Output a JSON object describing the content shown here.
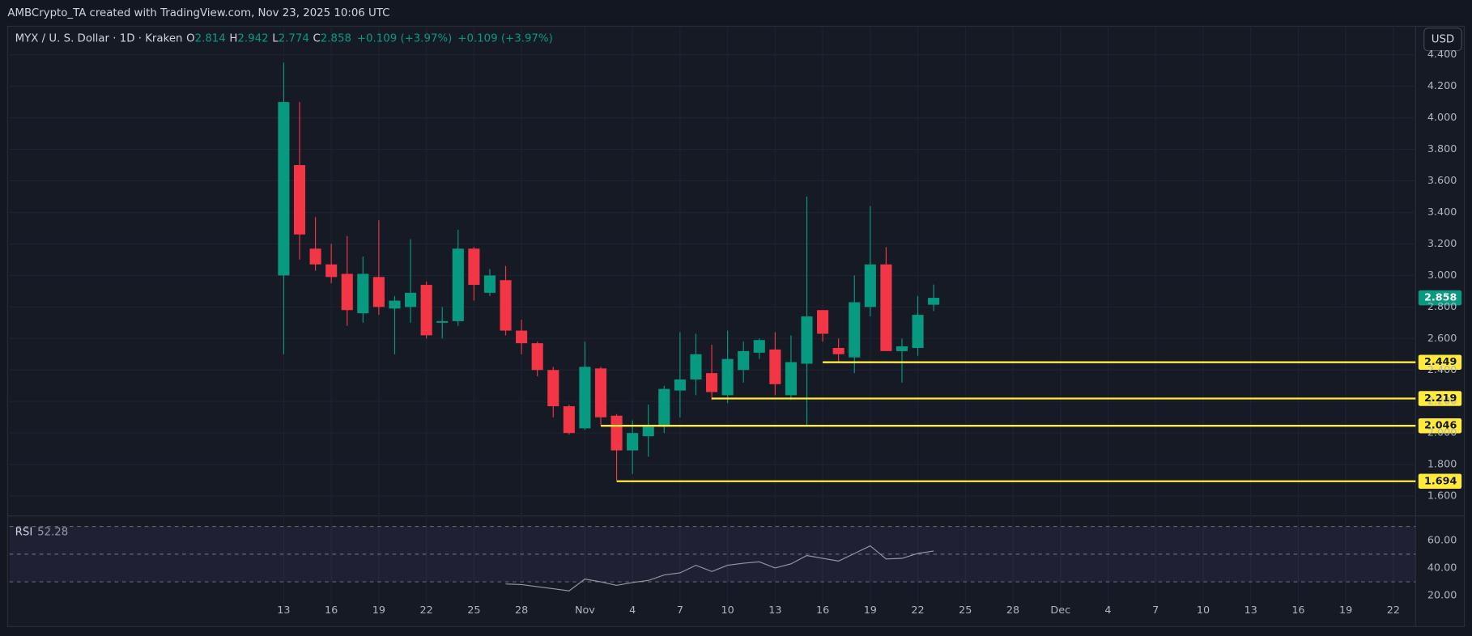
{
  "header": {
    "credit": "AMBCrypto_TA created with TradingView.com, Nov 23, 2025 10:06 UTC",
    "currency_button": "USD"
  },
  "chart_data": {
    "type": "candlestick",
    "title": "MYX / U. S. Dollar · 1D · Kraken",
    "ohlc_labels": [
      "O",
      "H",
      "L",
      "C"
    ],
    "change_labels": [
      "+0.109 (+3.97%)",
      "+0.109 (+3.97%)"
    ],
    "candles": {
      "open": [
        3.0,
        3.7,
        3.17,
        3.07,
        3.01,
        2.76,
        2.99,
        2.79,
        2.8,
        2.94,
        2.7,
        2.71,
        3.17,
        2.89,
        2.97,
        2.65,
        2.57,
        2.4,
        2.17,
        2.03,
        2.41,
        2.11,
        1.89,
        1.98,
        2.04,
        2.27,
        2.34,
        2.38,
        2.24,
        2.4,
        2.51,
        2.53,
        2.24,
        2.44,
        2.78,
        2.54,
        2.48,
        2.8,
        3.07,
        2.52,
        2.54,
        2.814
      ],
      "high": [
        4.35,
        4.1,
        3.37,
        3.2,
        3.25,
        3.12,
        3.35,
        2.87,
        3.23,
        2.96,
        2.8,
        3.29,
        3.18,
        3.04,
        3.06,
        2.72,
        2.58,
        2.42,
        2.18,
        2.58,
        2.42,
        2.12,
        2.08,
        2.18,
        2.3,
        2.64,
        2.63,
        2.56,
        2.65,
        2.58,
        2.6,
        2.64,
        2.62,
        3.5,
        2.78,
        2.6,
        3.0,
        3.44,
        3.18,
        2.6,
        2.87,
        2.942
      ],
      "low": [
        2.5,
        3.1,
        3.03,
        2.95,
        2.68,
        2.7,
        2.75,
        2.5,
        2.7,
        2.6,
        2.6,
        2.68,
        2.84,
        2.87,
        2.62,
        2.5,
        2.36,
        2.1,
        1.99,
        2.02,
        2.05,
        1.7,
        1.74,
        1.85,
        2.0,
        2.1,
        2.24,
        2.21,
        2.19,
        2.32,
        2.47,
        2.24,
        2.21,
        2.04,
        2.58,
        2.45,
        2.38,
        2.74,
        2.52,
        2.32,
        2.49,
        2.774
      ],
      "close": [
        4.1,
        3.26,
        3.07,
        2.99,
        2.78,
        3.01,
        2.8,
        2.84,
        2.89,
        2.62,
        2.71,
        3.17,
        2.94,
        3.0,
        2.65,
        2.57,
        2.4,
        2.17,
        2.0,
        2.42,
        2.1,
        1.89,
        2.0,
        2.04,
        2.28,
        2.34,
        2.5,
        2.26,
        2.47,
        2.52,
        2.59,
        2.31,
        2.45,
        2.74,
        2.63,
        2.5,
        2.83,
        3.07,
        2.52,
        2.55,
        2.75,
        2.858
      ]
    },
    "up_color": "#089981",
    "down_color": "#f23645",
    "xlim": [
      -17.3,
      71.4
    ],
    "xticks": [
      {
        "value": 0,
        "label": "13"
      },
      {
        "value": 3,
        "label": "16"
      },
      {
        "value": 6,
        "label": "19"
      },
      {
        "value": 9,
        "label": "22"
      },
      {
        "value": 12,
        "label": "25"
      },
      {
        "value": 15,
        "label": "28"
      },
      {
        "value": 19,
        "label": "Nov"
      },
      {
        "value": 22,
        "label": "4"
      },
      {
        "value": 25,
        "label": "7"
      },
      {
        "value": 28,
        "label": "10"
      },
      {
        "value": 31,
        "label": "13"
      },
      {
        "value": 34,
        "label": "16"
      },
      {
        "value": 37,
        "label": "19"
      },
      {
        "value": 40,
        "label": "22"
      },
      {
        "value": 43,
        "label": "25"
      },
      {
        "value": 46,
        "label": "28"
      },
      {
        "value": 49,
        "label": "Dec"
      },
      {
        "value": 52,
        "label": "4"
      },
      {
        "value": 55,
        "label": "7"
      },
      {
        "value": 58,
        "label": "10"
      },
      {
        "value": 61,
        "label": "13"
      },
      {
        "value": 64,
        "label": "16"
      },
      {
        "value": 67,
        "label": "19"
      },
      {
        "value": 70,
        "label": "22"
      }
    ],
    "ylim": [
      1.486,
      4.45
    ],
    "yticks": [
      {
        "value": 1.6,
        "label": "1.600"
      },
      {
        "value": 1.8,
        "label": "1.800"
      },
      {
        "value": 2.0,
        "label": "2.000"
      },
      {
        "value": 2.2,
        "label": "2.200"
      },
      {
        "value": 2.4,
        "label": "2.400"
      },
      {
        "value": 2.6,
        "label": "2.600"
      },
      {
        "value": 2.8,
        "label": "2.800"
      },
      {
        "value": 3.0,
        "label": "3.000"
      },
      {
        "value": 3.2,
        "label": "3.200"
      },
      {
        "value": 3.4,
        "label": "3.400"
      },
      {
        "value": 3.6,
        "label": "3.600"
      },
      {
        "value": 3.8,
        "label": "3.800"
      },
      {
        "value": 4.0,
        "label": "4.000"
      },
      {
        "value": 4.2,
        "label": "4.200"
      },
      {
        "value": 4.4,
        "label": "4.400"
      }
    ],
    "grid": true,
    "levels": [
      {
        "value": 2.449,
        "start": 34
      },
      {
        "value": 2.219,
        "start": 27
      },
      {
        "value": 2.046,
        "start": 20
      },
      {
        "value": 1.694,
        "start": 21
      }
    ],
    "level_color": "#ffeb3b",
    "rsi": {
      "name": "RSI",
      "color": "#9598a1",
      "values": [
        null,
        null,
        null,
        null,
        null,
        null,
        null,
        null,
        null,
        null,
        null,
        null,
        null,
        null,
        28.5,
        28,
        26.5,
        25,
        23.5,
        32,
        30,
        27.5,
        29.5,
        31,
        35,
        36.5,
        42,
        37.5,
        42,
        43.5,
        44.5,
        40,
        43,
        49,
        47,
        45,
        50.5,
        56,
        46.5,
        47,
        50.5,
        52.28
      ],
      "ylim": [
        11.2,
        75.6
      ],
      "yticks": [
        {
          "value": 20,
          "label": "20.00"
        },
        {
          "value": 40,
          "label": "40.00"
        },
        {
          "value": 60,
          "label": "60.00"
        }
      ],
      "bands": [
        70,
        50,
        30
      ]
    }
  }
}
